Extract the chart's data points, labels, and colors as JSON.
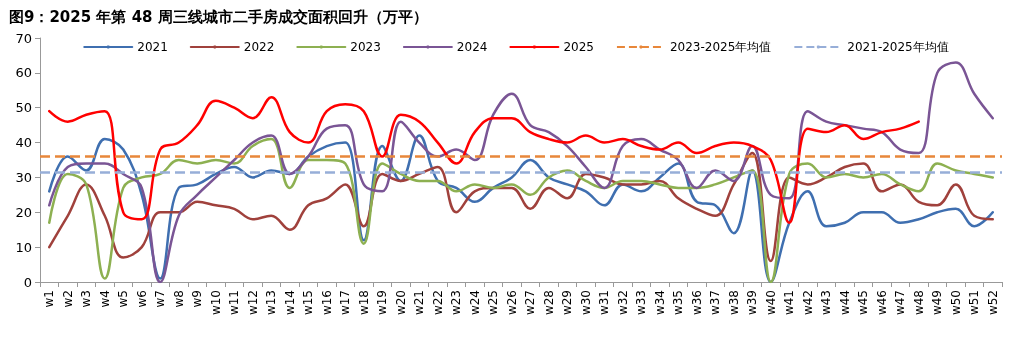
{
  "chart_data": {
    "type": "line",
    "title": "图9：2025 年第 48 周三线城市二手房成交面积回升（万平）",
    "categories": [
      "w1",
      "w2",
      "w3",
      "w4",
      "w5",
      "w6",
      "w7",
      "w8",
      "w9",
      "w10",
      "w11",
      "w12",
      "w13",
      "w14",
      "w15",
      "w16",
      "w17",
      "w18",
      "w19",
      "w20",
      "w21",
      "w22",
      "w23",
      "w24",
      "w25",
      "w26",
      "w27",
      "w28",
      "w29",
      "w30",
      "w31",
      "w32",
      "w33",
      "w34",
      "w35",
      "w36",
      "w37",
      "w38",
      "w39",
      "w40",
      "w41",
      "w42",
      "w43",
      "w44",
      "w45",
      "w46",
      "w47",
      "w48",
      "w49",
      "w50",
      "w51",
      "w52"
    ],
    "series": [
      {
        "name": "2021",
        "color": "#3f6fb0",
        "values": [
          26,
          36,
          32,
          41,
          38,
          25,
          1,
          27,
          28,
          31,
          33,
          30,
          32,
          31,
          36,
          39,
          40,
          12,
          39,
          29,
          42,
          29,
          27,
          23,
          27,
          30,
          35,
          30,
          28,
          26,
          22,
          28,
          26,
          30,
          34,
          23,
          22,
          14,
          32,
          0,
          17,
          26,
          16,
          17,
          20,
          20,
          17,
          18,
          20,
          21,
          16,
          20
        ]
      },
      {
        "name": "2022",
        "color": "#a0413c",
        "values": [
          10,
          19,
          28,
          19,
          7,
          10,
          20,
          20,
          23,
          22,
          21,
          18,
          19,
          15,
          22,
          24,
          28,
          16,
          31,
          29,
          31,
          33,
          20,
          26,
          27,
          27,
          21,
          27,
          24,
          31,
          30,
          28,
          28,
          29,
          24,
          21,
          19,
          28,
          37,
          6,
          30,
          28,
          30,
          33,
          34,
          26,
          28,
          23,
          22,
          28,
          19,
          18
        ]
      },
      {
        "name": "2023",
        "color": "#8db051",
        "values": [
          17,
          31,
          28,
          1,
          27,
          30,
          31,
          35,
          34,
          35,
          34,
          39,
          41,
          27,
          35,
          35,
          34,
          11,
          34,
          31,
          29,
          29,
          26,
          28,
          27,
          28,
          25,
          30,
          32,
          29,
          27,
          29,
          29,
          28,
          27,
          27,
          28,
          30,
          32,
          0,
          31,
          34,
          30,
          31,
          30,
          31,
          28,
          26,
          34,
          32,
          31,
          30
        ]
      },
      {
        "name": "2024",
        "color": "#7a5595",
        "values": [
          22,
          33,
          34,
          34,
          31,
          27,
          0,
          19,
          25,
          30,
          35,
          40,
          42,
          31,
          36,
          44,
          45,
          28,
          26,
          46,
          40,
          36,
          38,
          35,
          48,
          54,
          45,
          43,
          39,
          33,
          27,
          39,
          41,
          38,
          35,
          27,
          32,
          29,
          39,
          25,
          24,
          49,
          46,
          45,
          44,
          43,
          38,
          37,
          60,
          63,
          54,
          47
        ]
      },
      {
        "name": "2025",
        "color": "#ff0000",
        "values": [
          49,
          46,
          48,
          49,
          20,
          18,
          38,
          40,
          45,
          52,
          50,
          47,
          53,
          43,
          40,
          49,
          51,
          49,
          36,
          48,
          46,
          40,
          34,
          43,
          47,
          47,
          43,
          41,
          40,
          42,
          40,
          41,
          39,
          38,
          40,
          37,
          39,
          40,
          39,
          35,
          17,
          44,
          43,
          45,
          41,
          43,
          44,
          46,
          null,
          null,
          null,
          null
        ]
      }
    ],
    "ref_lines": [
      {
        "axis": "y",
        "value": 36,
        "label": "2023-2025年均值",
        "color": "#e8873a",
        "line_style": "dashed"
      },
      {
        "axis": "y",
        "value": 31.5,
        "label": "2021-2025年均值",
        "color": "#97aed8",
        "line_style": "dashed"
      }
    ],
    "ylim": [
      0,
      70
    ],
    "yticks": [
      0,
      10,
      20,
      30,
      40,
      50,
      60,
      70
    ],
    "grid": false,
    "legend": "top",
    "marker": "none",
    "line_style": "solid"
  }
}
